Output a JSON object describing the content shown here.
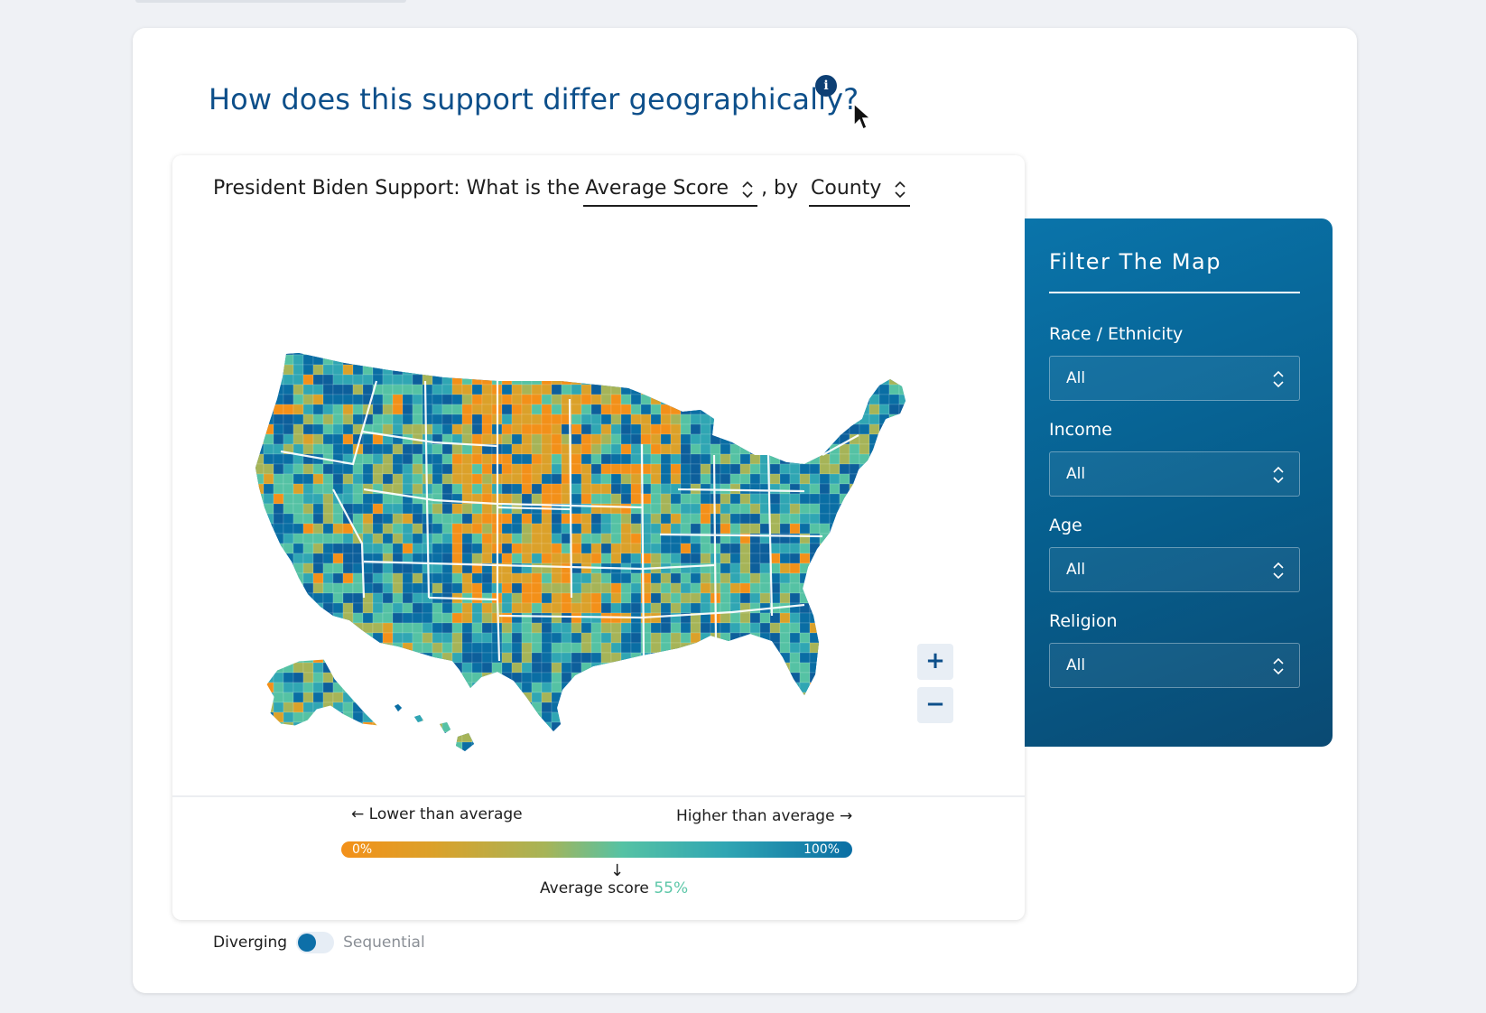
{
  "header": {
    "title": "How does this support differ geographically?",
    "info_icon": "i"
  },
  "map": {
    "question_prefix": "President Biden Support: What is the",
    "metric_value": "Average Score",
    "by_text": ", by",
    "geo_value": "County",
    "zoom_in": "+",
    "zoom_out": "−",
    "fill_colors": [
      "#f39019",
      "#dba12a",
      "#a6b458",
      "#55c2a4",
      "#30a6b3",
      "#0a6ea4",
      "#0d5f9b"
    ]
  },
  "legend": {
    "lower_label": "← Lower than average",
    "higher_label": "Higher than average →",
    "bar_min": "0%",
    "bar_max": "100%",
    "avg_arrow": "↓",
    "avg_label": "Average score",
    "avg_value": "55%"
  },
  "toggle": {
    "left_label": "Diverging",
    "right_label": "Sequential",
    "active": "Diverging"
  },
  "filter": {
    "title": "Filter The Map",
    "fields": [
      {
        "label": "Race / Ethnicity",
        "value": "All"
      },
      {
        "label": "Income",
        "value": "All"
      },
      {
        "label": "Age",
        "value": "All"
      },
      {
        "label": "Religion",
        "value": "All"
      }
    ]
  }
}
